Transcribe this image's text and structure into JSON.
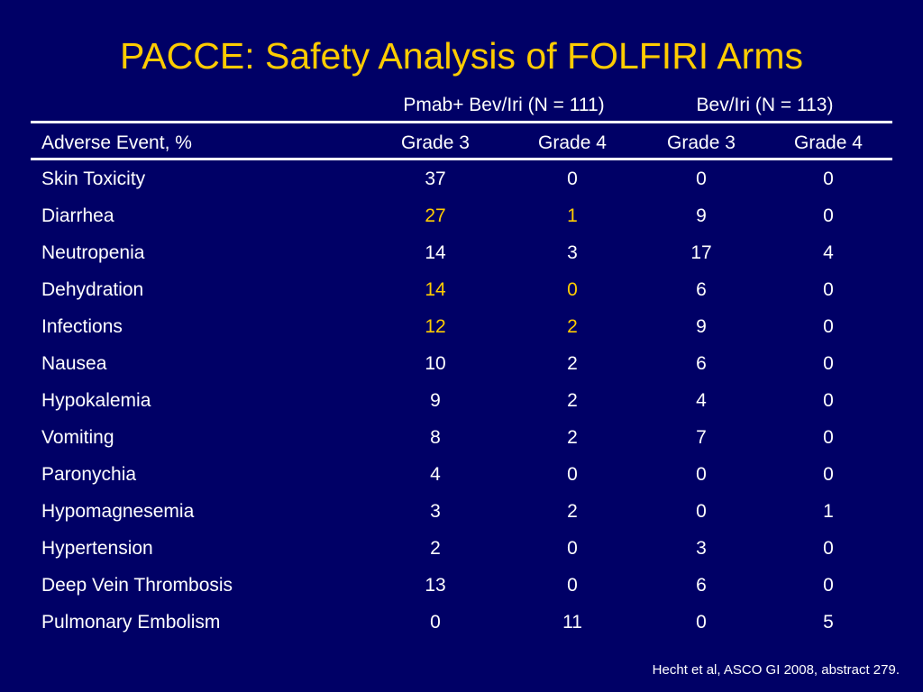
{
  "title": "PACCE: Safety Analysis of FOLFIRI Arms",
  "colors": {
    "background": "#000066",
    "title": "#ffcc00",
    "text": "#ffffff",
    "highlight": "#ffcc00"
  },
  "table": {
    "group_headers": [
      "Pmab+ Bev/Iri (N = 111)",
      "Bev/Iri (N = 113)"
    ],
    "columns": [
      "Adverse Event, %",
      "Grade 3",
      "Grade 4",
      "Grade 3",
      "Grade 4"
    ],
    "rows": [
      {
        "event": "Skin Toxicity",
        "values": [
          "37",
          "0",
          "0",
          "0"
        ]
      },
      {
        "event": "Diarrhea",
        "values": [
          "27",
          "1",
          "9",
          "0"
        ]
      },
      {
        "event": "Neutropenia",
        "values": [
          "14",
          "3",
          "17",
          "4"
        ]
      },
      {
        "event": "Dehydration",
        "values": [
          "14",
          "0",
          "6",
          "0"
        ]
      },
      {
        "event": "Infections",
        "values": [
          "12",
          "2",
          "9",
          "0"
        ]
      },
      {
        "event": "Nausea",
        "values": [
          "10",
          "2",
          "6",
          "0"
        ]
      },
      {
        "event": "Hypokalemia",
        "values": [
          "9",
          "2",
          "4",
          "0"
        ]
      },
      {
        "event": "Vomiting",
        "values": [
          "8",
          "2",
          "7",
          "0"
        ]
      },
      {
        "event": "Paronychia",
        "values": [
          "4",
          "0",
          "0",
          "0"
        ]
      },
      {
        "event": "Hypomagnesemia",
        "values": [
          "3",
          "2",
          "0",
          "1"
        ]
      },
      {
        "event": "Hypertension",
        "values": [
          "2",
          "0",
          "3",
          "0"
        ]
      },
      {
        "event": "Deep Vein Thrombosis",
        "values": [
          "13",
          "0",
          "6",
          "0"
        ]
      },
      {
        "event": "Pulmonary Embolism",
        "values": [
          "0",
          "11",
          "0",
          "5"
        ]
      }
    ],
    "highlighted_rows": [
      "Diarrhea",
      "Dehydration",
      "Infections"
    ]
  },
  "citation": "Hecht et al, ASCO GI  2008, abstract 279."
}
